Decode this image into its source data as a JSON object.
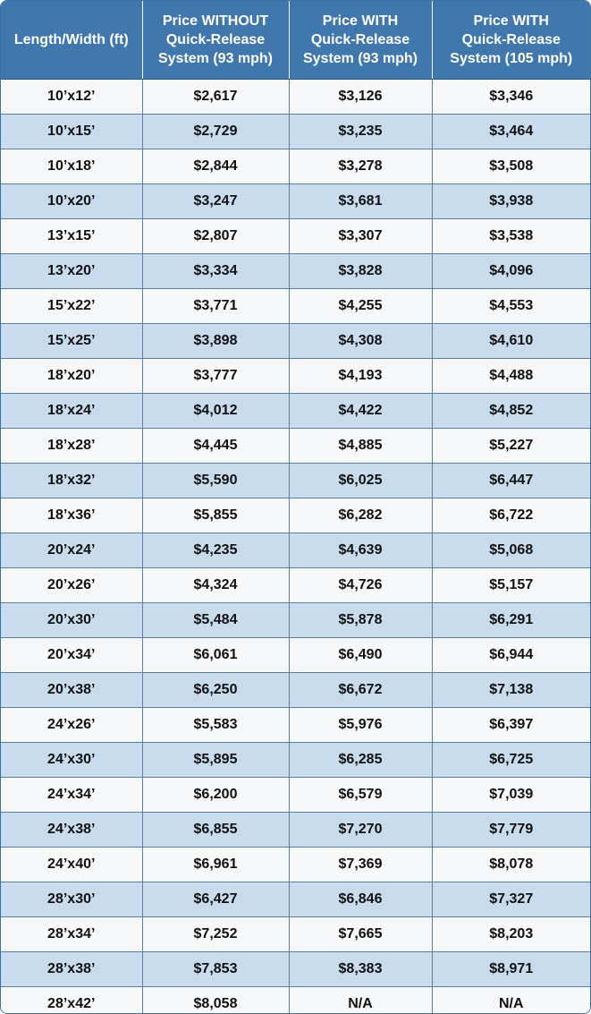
{
  "table": {
    "headers": [
      "Length/Width (ft)",
      "Price WITHOUT Quick-Release System (93 mph)",
      "Price WITH Quick-Release System (93 mph)",
      "Price WITH Quick-Release System (105 mph)"
    ],
    "header_lines": [
      [
        "Length/Width (ft)"
      ],
      [
        "Price WITHOUT",
        "Quick-Release",
        "System (93 mph)"
      ],
      [
        "Price WITH",
        "Quick-Release",
        "System (93 mph)"
      ],
      [
        "Price WITH",
        "Quick-Release",
        "System (105 mph)"
      ]
    ],
    "rows": [
      [
        "10’x12’",
        "$2,617",
        "$3,126",
        "$3,346"
      ],
      [
        "10’x15’",
        "$2,729",
        "$3,235",
        "$3,464"
      ],
      [
        "10’x18’",
        "$2,844",
        "$3,278",
        "$3,508"
      ],
      [
        "10’x20’",
        "$3,247",
        "$3,681",
        "$3,938"
      ],
      [
        "13’x15’",
        "$2,807",
        "$3,307",
        "$3,538"
      ],
      [
        "13’x20’",
        "$3,334",
        "$3,828",
        "$4,096"
      ],
      [
        "15’x22’",
        "$3,771",
        "$4,255",
        "$4,553"
      ],
      [
        "15’x25’",
        "$3,898",
        "$4,308",
        "$4,610"
      ],
      [
        "18’x20’",
        "$3,777",
        "$4,193",
        "$4,488"
      ],
      [
        "18’x24’",
        "$4,012",
        "$4,422",
        "$4,852"
      ],
      [
        "18’x28’",
        "$4,445",
        "$4,885",
        "$5,227"
      ],
      [
        "18’x32’",
        "$5,590",
        "$6,025",
        "$6,447"
      ],
      [
        "18’x36’",
        "$5,855",
        "$6,282",
        "$6,722"
      ],
      [
        "20’x24’",
        "$4,235",
        "$4,639",
        "$5,068"
      ],
      [
        "20’x26’",
        "$4,324",
        "$4,726",
        "$5,157"
      ],
      [
        "20’x30’",
        "$5,484",
        "$5,878",
        "$6,291"
      ],
      [
        "20’x34’",
        "$6,061",
        "$6,490",
        "$6,944"
      ],
      [
        "20’x38’",
        "$6,250",
        "$6,672",
        "$7,138"
      ],
      [
        "24’x26’",
        "$5,583",
        "$5,976",
        "$6,397"
      ],
      [
        "24’x30’",
        "$5,895",
        "$6,285",
        "$6,725"
      ],
      [
        "24’x34’",
        "$6,200",
        "$6,579",
        "$7,039"
      ],
      [
        "24’x38’",
        "$6,855",
        "$7,270",
        "$7,779"
      ],
      [
        "24’x40’",
        "$6,961",
        "$7,369",
        "$8,078"
      ],
      [
        "28’x30’",
        "$6,427",
        "$6,846",
        "$7,327"
      ],
      [
        "28’x34’",
        "$7,252",
        "$7,665",
        "$8,203"
      ],
      [
        "28’x38’",
        "$7,853",
        "$8,383",
        "$8,971"
      ],
      [
        "28’x42’",
        "$8,058",
        "N/A",
        "N/A"
      ]
    ]
  },
  "colors": {
    "header_bg": "#4077ad",
    "header_text": "#ffffff",
    "row_light": "#f7f8fa",
    "row_blue": "#c8dced",
    "grid": "#5a7fa6"
  }
}
